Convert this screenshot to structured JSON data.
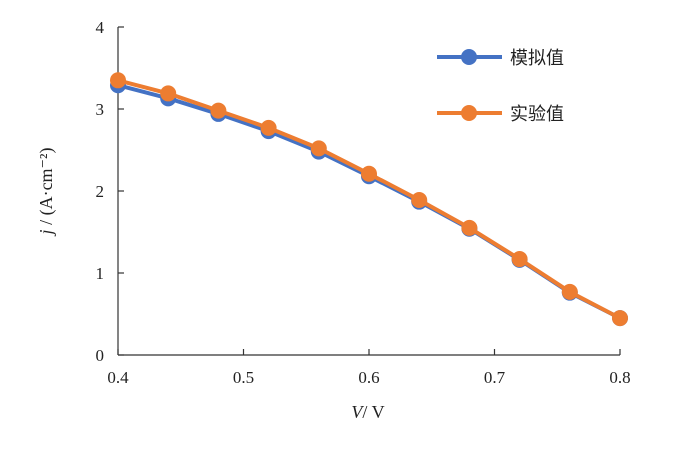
{
  "chart_data": {
    "type": "line",
    "title": "",
    "xlabel": "V / V",
    "xlabel_var": "V",
    "xlabel_unit": "/ V",
    "ylabel": "j / (A·cm⁻²)",
    "ylabel_var": "j",
    "ylabel_unit": " / (A·cm⁻²)",
    "xlim": [
      0.4,
      0.8
    ],
    "ylim": [
      0,
      4
    ],
    "xticks": [
      "0.4",
      "0.5",
      "0.6",
      "0.7",
      "0.8"
    ],
    "xtick_values": [
      0.4,
      0.5,
      0.6,
      0.7,
      0.8
    ],
    "yticks": [
      "0",
      "1",
      "2",
      "3",
      "4"
    ],
    "ytick_values": [
      0,
      1,
      2,
      3,
      4
    ],
    "grid": false,
    "legend_position": "top-right",
    "x": [
      0.4,
      0.44,
      0.48,
      0.52,
      0.56,
      0.6,
      0.64,
      0.68,
      0.72,
      0.76,
      0.8
    ],
    "series": [
      {
        "name": "模拟值",
        "color": "#4472c4",
        "values": [
          3.29,
          3.13,
          2.94,
          2.73,
          2.48,
          2.18,
          1.87,
          1.54,
          1.16,
          0.76,
          0.45
        ]
      },
      {
        "name": "实验值",
        "color": "#ed7d31",
        "values": [
          3.35,
          3.19,
          2.98,
          2.77,
          2.52,
          2.21,
          1.89,
          1.55,
          1.17,
          0.77,
          0.45
        ]
      }
    ]
  }
}
